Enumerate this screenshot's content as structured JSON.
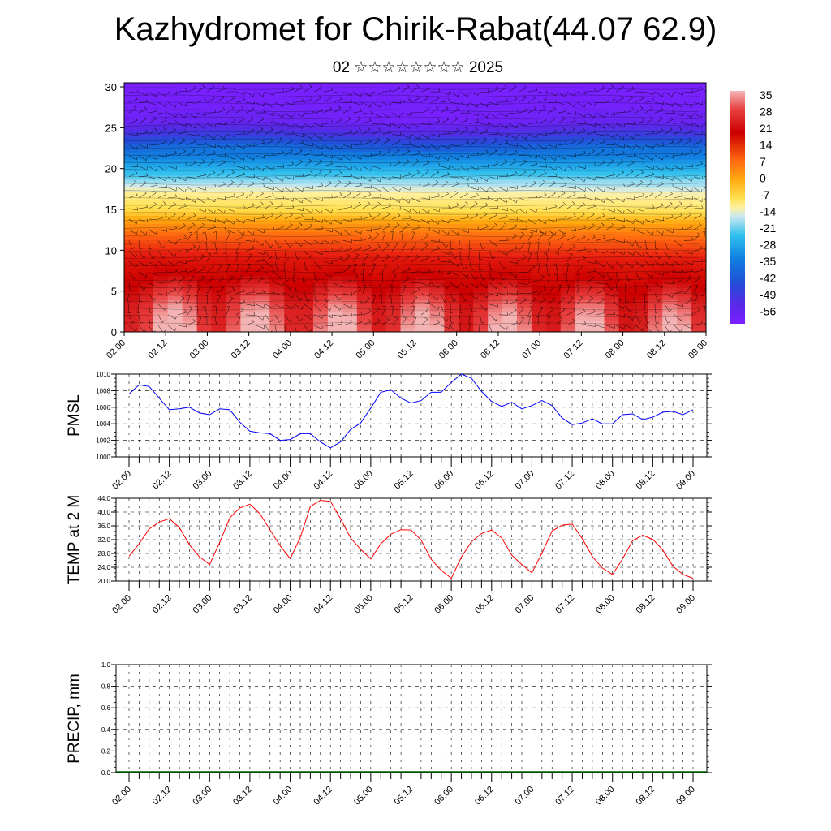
{
  "title": "Kazhydromet for Chirik-Rabat(44.07 62.9)",
  "subtitle": "02 ☆☆☆☆☆☆☆☆ 2025",
  "chart_data": [
    {
      "type": "heatmap",
      "name": "temperature-wind-cross-section",
      "x_ticks": [
        "02.00",
        "02.12",
        "03.00",
        "03.12",
        "04.00",
        "04.12",
        "05.00",
        "05.12",
        "06.00",
        "06.12",
        "07.00",
        "07.12",
        "08.00",
        "08.12",
        "09.00"
      ],
      "y_ticks": [
        "0",
        "5",
        "10",
        "15",
        "20",
        "25",
        "30"
      ],
      "ylim": [
        0,
        30.5
      ],
      "colorbar_labels": [
        "35",
        "28",
        "21",
        "14",
        "7",
        "0",
        "-7",
        "-14",
        "-21",
        "-28",
        "-35",
        "-42",
        "-49",
        "-56"
      ],
      "colorbar_range": [
        -60,
        38
      ],
      "vertical_profile_temp": [
        [
          0,
          36
        ],
        [
          3,
          33
        ],
        [
          6,
          27
        ],
        [
          9,
          20
        ],
        [
          11,
          12
        ],
        [
          13,
          4
        ],
        [
          15,
          -5
        ],
        [
          17,
          -10
        ],
        [
          19,
          -22
        ],
        [
          21,
          -30
        ],
        [
          23,
          -38
        ],
        [
          24.5,
          -48
        ],
        [
          26,
          -57
        ],
        [
          30.5,
          -60
        ]
      ],
      "grid": true
    },
    {
      "type": "line",
      "name": "pmsl",
      "ylabel": "PMSL",
      "ylim": [
        1000,
        1010
      ],
      "y_ticks": [
        "1010",
        "1008",
        "1006",
        "1004",
        "1002",
        "1000"
      ],
      "x_ticks": [
        "02.00",
        "02.12",
        "03.00",
        "03.12",
        "04.00",
        "04.12",
        "05.00",
        "05.12",
        "06.00",
        "06.12",
        "07.00",
        "07.12",
        "08.00",
        "08.12",
        "09.00"
      ],
      "x": [
        0,
        3,
        6,
        9,
        12,
        15,
        18,
        21,
        24,
        27,
        30,
        33,
        36,
        39,
        42,
        45,
        48,
        51,
        54,
        57,
        60,
        63,
        66,
        69,
        72,
        75,
        78,
        81,
        84,
        87,
        90,
        93,
        96,
        99,
        102,
        105,
        108,
        111,
        114,
        117,
        120,
        123,
        126,
        129,
        132,
        135,
        138,
        141,
        144,
        147,
        150,
        153,
        156,
        159,
        162,
        165,
        168
      ],
      "values": [
        1007.6,
        1008.7,
        1008.5,
        1007.1,
        1005.7,
        1005.8,
        1006.0,
        1005.3,
        1005.1,
        1005.8,
        1005.7,
        1004.2,
        1003.1,
        1002.9,
        1002.8,
        1002.0,
        1002.1,
        1002.8,
        1002.8,
        1001.8,
        1001.1,
        1001.8,
        1003.3,
        1004.1,
        1005.9,
        1007.8,
        1008.1,
        1007.1,
        1006.5,
        1006.8,
        1007.8,
        1007.8,
        1009.0,
        1010.0,
        1009.5,
        1007.9,
        1006.7,
        1006.1,
        1006.6,
        1005.8,
        1006.2,
        1006.8,
        1006.2,
        1004.7,
        1003.9,
        1004.1,
        1004.6,
        1004.0,
        1004.0,
        1005.1,
        1005.2,
        1004.5,
        1004.8,
        1005.4,
        1005.5,
        1005.1,
        1005.7
      ],
      "color": "#0000ff",
      "grid": true
    },
    {
      "type": "line",
      "name": "temp-2m",
      "ylabel": "TEMP at 2 M",
      "ylim": [
        20,
        44
      ],
      "y_ticks": [
        "44.0",
        "40.0",
        "36.0",
        "32.0",
        "28.0",
        "24.0",
        "20.0"
      ],
      "x_ticks": [
        "02.00",
        "02.12",
        "03.00",
        "03.12",
        "04.00",
        "04.12",
        "05.00",
        "05.12",
        "06.00",
        "06.12",
        "07.00",
        "07.12",
        "08.00",
        "08.12",
        "09.00"
      ],
      "x": [
        0,
        3,
        6,
        9,
        12,
        15,
        18,
        21,
        24,
        27,
        30,
        33,
        36,
        39,
        42,
        45,
        48,
        51,
        54,
        57,
        60,
        63,
        66,
        69,
        72,
        75,
        78,
        81,
        84,
        87,
        90,
        93,
        96,
        99,
        102,
        105,
        108,
        111,
        114,
        117,
        120,
        123,
        126,
        129,
        132,
        135,
        138,
        141,
        144,
        147,
        150,
        153,
        156,
        159,
        162,
        165,
        168
      ],
      "values": [
        27.2,
        30.8,
        35.1,
        37.1,
        38.1,
        35.5,
        30.5,
        27.0,
        24.8,
        31.2,
        38.3,
        41.2,
        42.3,
        39.5,
        34.8,
        30.2,
        26.5,
        32.6,
        41.6,
        43.4,
        43.1,
        38.1,
        32.5,
        29.2,
        26.4,
        30.8,
        33.6,
        34.9,
        34.8,
        31.9,
        26.3,
        23.1,
        20.8,
        27.0,
        31.4,
        33.8,
        34.8,
        32.5,
        27.5,
        24.8,
        22.4,
        28.1,
        34.5,
        36.2,
        36.5,
        32.3,
        27.1,
        23.8,
        21.9,
        26.4,
        31.7,
        33.3,
        32.1,
        29.0,
        24.3,
        21.9,
        20.8
      ],
      "color": "#ff0000",
      "grid": true
    },
    {
      "type": "bar",
      "name": "precip",
      "ylabel": "PRECIP, mm",
      "ylim": [
        0,
        1
      ],
      "y_ticks": [
        "1.0",
        "0.8",
        "0.6",
        "0.4",
        "0.2",
        "0.0"
      ],
      "x_ticks": [
        "02.00",
        "02.12",
        "03.00",
        "03.12",
        "04.00",
        "04.12",
        "05.00",
        "05.12",
        "06.00",
        "06.12",
        "07.00",
        "07.12",
        "08.00",
        "08.12",
        "09.00"
      ],
      "values": [],
      "grid": true
    }
  ]
}
